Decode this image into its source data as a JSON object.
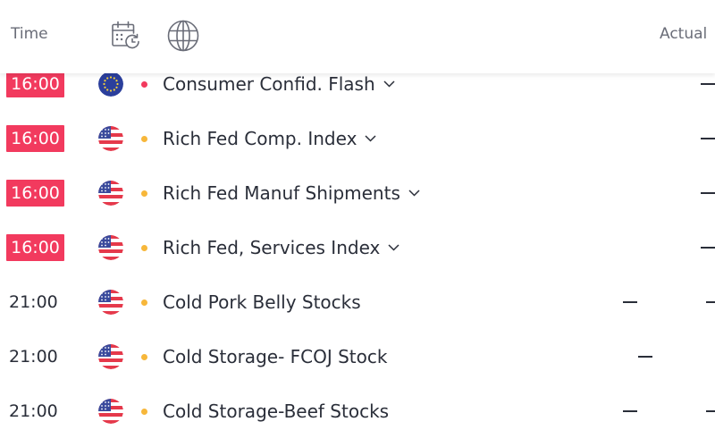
{
  "header": {
    "time_label": "Time",
    "actual_label": "Actual",
    "icons": [
      "calendar-refresh-icon",
      "globe-icon"
    ]
  },
  "colors": {
    "accent_red": "#f23a5e",
    "importance_orange": "#f7b73a",
    "text": "#2a2e39",
    "header_text": "#6a6d78"
  },
  "rows": [
    {
      "time": "16:00",
      "time_highlighted": true,
      "country": "EU",
      "importance": "high",
      "event": "Consumer Confid. Flash",
      "actual": "—"
    },
    {
      "time": "16:00",
      "time_highlighted": true,
      "country": "US",
      "importance": "medium",
      "event": "Rich Fed Comp. Index",
      "actual": "—"
    },
    {
      "time": "16:00",
      "time_highlighted": true,
      "country": "US",
      "importance": "medium",
      "event": "Rich Fed Manuf Shipments",
      "actual": "—"
    },
    {
      "time": "16:00",
      "time_highlighted": true,
      "country": "US",
      "importance": "medium",
      "event": "Rich Fed, Services Index",
      "actual": "—"
    },
    {
      "time": "21:00",
      "time_highlighted": false,
      "country": "US",
      "importance": "medium",
      "event": "Cold Pork Belly Stocks",
      "actual": "—"
    },
    {
      "time": "21:00",
      "time_highlighted": false,
      "country": "US",
      "importance": "medium",
      "event": "Cold Storage- FCOJ Stock",
      "actual": "—"
    },
    {
      "time": "21:00",
      "time_highlighted": false,
      "country": "US",
      "importance": "medium",
      "event": "Cold Storage-Beef Stocks",
      "actual": "—"
    }
  ]
}
